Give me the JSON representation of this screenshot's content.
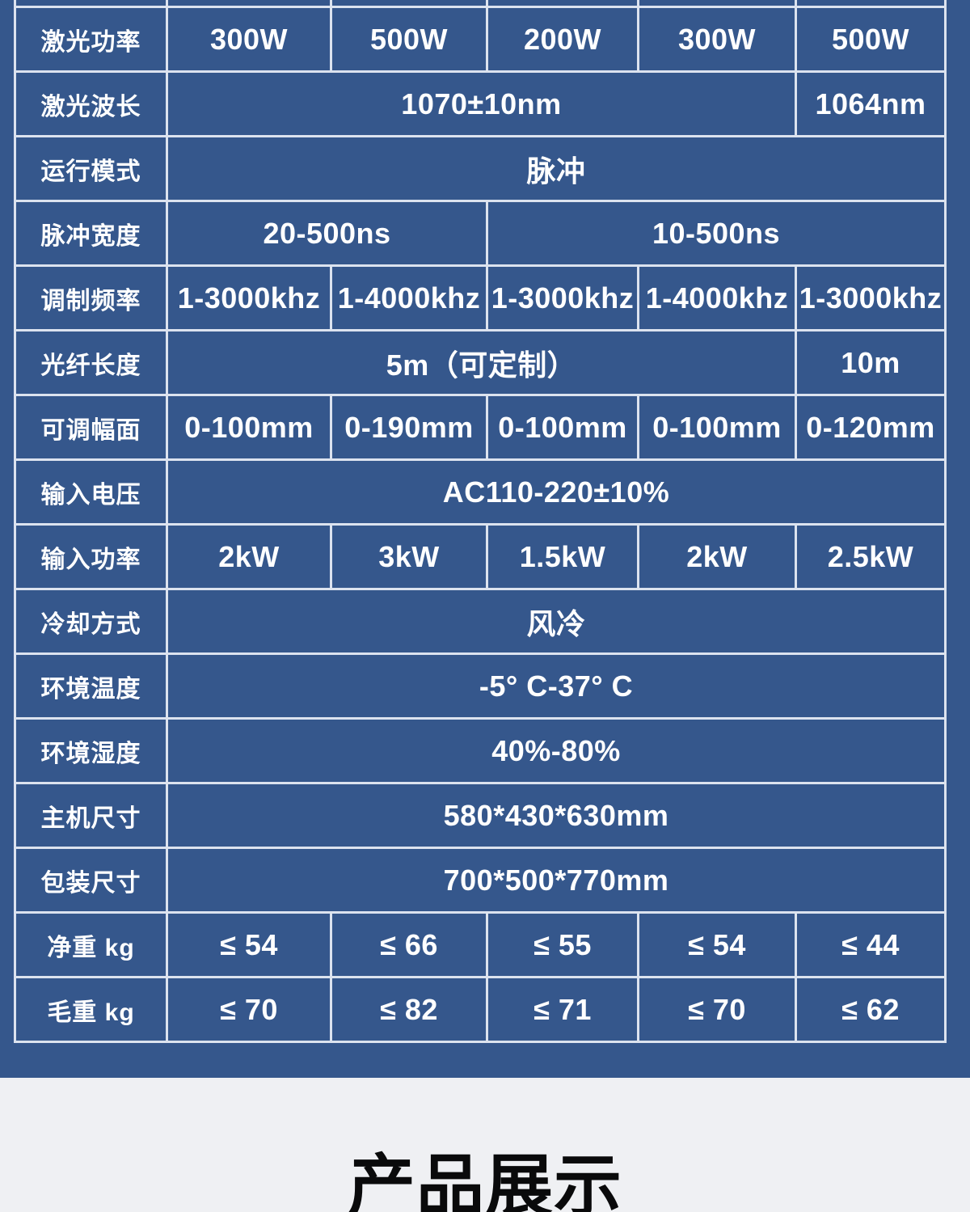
{
  "page": {
    "bg_color": "#35578c",
    "border_color": "#dce3ef",
    "table_text_color": "#ffffff",
    "section_bg_color": "#eff0f3",
    "heading_color": "#0a0a0b"
  },
  "spec_table": {
    "rows": [
      {
        "label": "",
        "cells": [
          {
            "text": "",
            "span": 1
          },
          {
            "text": "",
            "span": 1
          },
          {
            "text": "",
            "span": 1
          },
          {
            "text": "",
            "span": 1
          },
          {
            "text": "",
            "span": 1
          }
        ]
      },
      {
        "label": "激光功率",
        "cells": [
          {
            "text": "300W",
            "span": 1
          },
          {
            "text": "500W",
            "span": 1
          },
          {
            "text": "200W",
            "span": 1
          },
          {
            "text": "300W",
            "span": 1
          },
          {
            "text": "500W",
            "span": 1
          }
        ]
      },
      {
        "label": "激光波长",
        "cells": [
          {
            "text": "1070±10nm",
            "span": 4
          },
          {
            "text": "1064nm",
            "span": 1
          }
        ]
      },
      {
        "label": "运行模式",
        "cells": [
          {
            "text": "脉冲",
            "span": 5
          }
        ]
      },
      {
        "label": "脉冲宽度",
        "cells": [
          {
            "text": "20-500ns",
            "span": 2
          },
          {
            "text": "10-500ns",
            "span": 3
          }
        ]
      },
      {
        "label": "调制频率",
        "cells": [
          {
            "text": "1-3000khz",
            "span": 1
          },
          {
            "text": "1-4000khz",
            "span": 1
          },
          {
            "text": "1-3000khz",
            "span": 1
          },
          {
            "text": "1-4000khz",
            "span": 1
          },
          {
            "text": "1-3000khz",
            "span": 1
          }
        ]
      },
      {
        "label": "光纤长度",
        "cells": [
          {
            "text": "5m（可定制）",
            "span": 4
          },
          {
            "text": "10m",
            "span": 1
          }
        ]
      },
      {
        "label": "可调幅面",
        "cells": [
          {
            "text": "0-100mm",
            "span": 1
          },
          {
            "text": "0-190mm",
            "span": 1
          },
          {
            "text": "0-100mm",
            "span": 1
          },
          {
            "text": "0-100mm",
            "span": 1
          },
          {
            "text": "0-120mm",
            "span": 1
          }
        ]
      },
      {
        "label": "输入电压",
        "cells": [
          {
            "text": "AC110-220±10%",
            "span": 5
          }
        ]
      },
      {
        "label": "输入功率",
        "cells": [
          {
            "text": "2kW",
            "span": 1
          },
          {
            "text": "3kW",
            "span": 1
          },
          {
            "text": "1.5kW",
            "span": 1
          },
          {
            "text": "2kW",
            "span": 1
          },
          {
            "text": "2.5kW",
            "span": 1
          }
        ]
      },
      {
        "label": "冷却方式",
        "cells": [
          {
            "text": "风冷",
            "span": 5
          }
        ]
      },
      {
        "label": "环境温度",
        "cells": [
          {
            "text": "-5° C-37° C",
            "span": 5
          }
        ]
      },
      {
        "label": "环境湿度",
        "cells": [
          {
            "text": "40%-80%",
            "span": 5
          }
        ]
      },
      {
        "label": "主机尺寸",
        "cells": [
          {
            "text": "580*430*630mm",
            "span": 5
          }
        ]
      },
      {
        "label": "包装尺寸",
        "cells": [
          {
            "text": "700*500*770mm",
            "span": 5
          }
        ]
      },
      {
        "label": "净重 kg",
        "cells": [
          {
            "text": "≤ 54",
            "span": 1
          },
          {
            "text": "≤ 66",
            "span": 1
          },
          {
            "text": "≤ 55",
            "span": 1
          },
          {
            "text": "≤ 54",
            "span": 1
          },
          {
            "text": "≤ 44",
            "span": 1
          }
        ]
      },
      {
        "label": "毛重 kg",
        "cells": [
          {
            "text": "≤ 70",
            "span": 1
          },
          {
            "text": "≤ 82",
            "span": 1
          },
          {
            "text": "≤ 71",
            "span": 1
          },
          {
            "text": "≤ 70",
            "span": 1
          },
          {
            "text": "≤ 62",
            "span": 1
          }
        ]
      }
    ]
  },
  "product_section": {
    "heading": "产品展示"
  }
}
